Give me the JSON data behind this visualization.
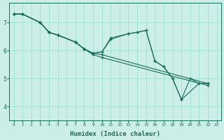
{
  "xlabel": "Humidex (Indice chaleur)",
  "bg_color": "#cceee8",
  "grid_color": "#99ddcc",
  "line_color": "#1a6b5a",
  "xlim": [
    -0.5,
    23.5
  ],
  "ylim": [
    3.5,
    7.7
  ],
  "yticks": [
    4,
    5,
    6,
    7
  ],
  "xticks": [
    0,
    1,
    2,
    3,
    4,
    5,
    6,
    7,
    8,
    9,
    10,
    11,
    12,
    13,
    14,
    15,
    16,
    17,
    18,
    19,
    20,
    21,
    22,
    23
  ],
  "line1_x": [
    0,
    1,
    3,
    4,
    5,
    7,
    8,
    9,
    10,
    22
  ],
  "line1_y": [
    7.3,
    7.3,
    7.0,
    6.65,
    6.55,
    6.3,
    6.05,
    5.9,
    5.85,
    4.82
  ],
  "line2_x": [
    0,
    1,
    3,
    4,
    5,
    7,
    8,
    9,
    10,
    11,
    13,
    14,
    15,
    16,
    17,
    18,
    19,
    21,
    22
  ],
  "line2_y": [
    7.3,
    7.3,
    7.0,
    6.65,
    6.55,
    6.3,
    6.05,
    5.9,
    5.95,
    6.45,
    6.6,
    6.65,
    6.72,
    5.62,
    5.42,
    5.0,
    4.25,
    4.82,
    4.82
  ],
  "line3_x": [
    0,
    1,
    3,
    4,
    5,
    7,
    8,
    9,
    10,
    11,
    13,
    14,
    15,
    16,
    17,
    18,
    19,
    20,
    21,
    22
  ],
  "line3_y": [
    7.3,
    7.3,
    7.0,
    6.65,
    6.55,
    6.3,
    6.05,
    5.9,
    5.95,
    6.4,
    6.6,
    6.65,
    6.72,
    5.62,
    5.42,
    5.0,
    4.25,
    5.0,
    4.82,
    4.82
  ],
  "line4_x": [
    0,
    1,
    3,
    4,
    5,
    7,
    8,
    9,
    10,
    22
  ],
  "line4_y": [
    7.3,
    7.3,
    7.0,
    6.65,
    6.55,
    6.3,
    6.05,
    5.85,
    5.75,
    4.75
  ]
}
